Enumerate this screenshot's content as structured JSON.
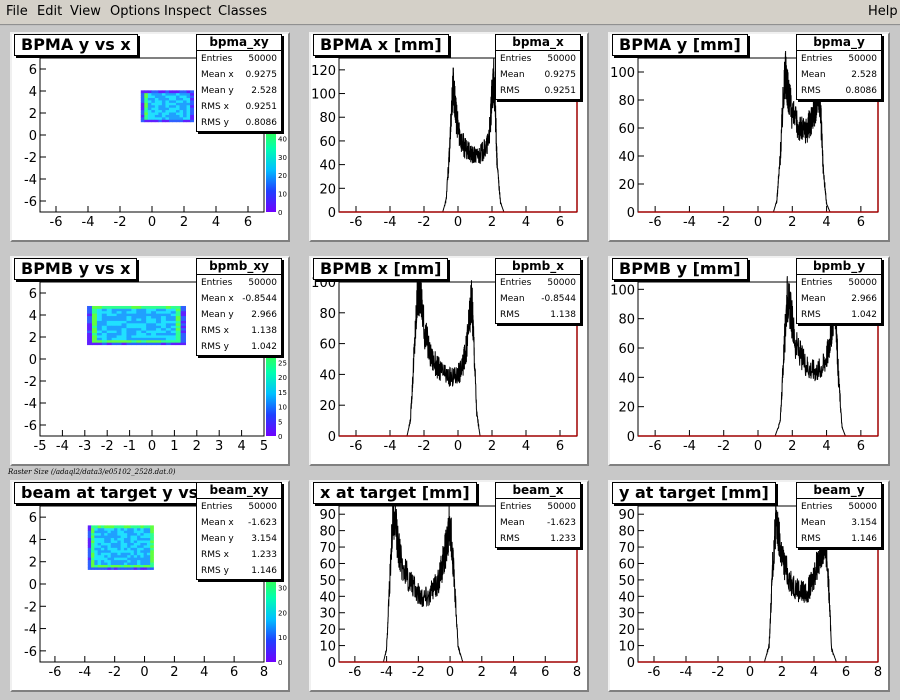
{
  "menubar": {
    "items": [
      {
        "label": "File"
      },
      {
        "label": "Edit"
      },
      {
        "label": "View"
      },
      {
        "label": "Options"
      },
      {
        "label": "Inspect"
      },
      {
        "label": "Classes"
      }
    ],
    "help": "Help"
  },
  "footer_label": "Raster Size (/adaql2/data3/e05102_2528.dat.0)",
  "pads": [
    {
      "id": "bpma_xy",
      "title": "BPMA y vs x",
      "stats_name": "bpma_xy",
      "stats": [
        {
          "label": "Entries",
          "value": "50000"
        },
        {
          "label": "Mean x",
          "value": "0.9275"
        },
        {
          "label": "Mean y",
          "value": "2.528"
        },
        {
          "label": "RMS x",
          "value": "0.9251"
        },
        {
          "label": "RMS y",
          "value": "0.8086"
        }
      ]
    },
    {
      "id": "bpma_x",
      "title": "BPMA x [mm]",
      "stats_name": "bpma_x",
      "stats": [
        {
          "label": "Entries",
          "value": "50000"
        },
        {
          "label": "Mean",
          "value": "0.9275"
        },
        {
          "label": "RMS",
          "value": "0.9251"
        }
      ]
    },
    {
      "id": "bpma_y",
      "title": "BPMA y [mm]",
      "stats_name": "bpma_y",
      "stats": [
        {
          "label": "Entries",
          "value": "50000"
        },
        {
          "label": "Mean",
          "value": "2.528"
        },
        {
          "label": "RMS",
          "value": "0.8086"
        }
      ]
    },
    {
      "id": "bpmb_xy",
      "title": "BPMB y vs x",
      "stats_name": "bpmb_xy",
      "stats": [
        {
          "label": "Entries",
          "value": "50000"
        },
        {
          "label": "Mean x",
          "value": "-0.8544"
        },
        {
          "label": "Mean y",
          "value": "2.966"
        },
        {
          "label": "RMS x",
          "value": "1.138"
        },
        {
          "label": "RMS y",
          "value": "1.042"
        }
      ]
    },
    {
      "id": "bpmb_x",
      "title": "BPMB x [mm]",
      "stats_name": "bpmb_x",
      "stats": [
        {
          "label": "Entries",
          "value": "50000"
        },
        {
          "label": "Mean",
          "value": "-0.8544"
        },
        {
          "label": "RMS",
          "value": "1.138"
        }
      ]
    },
    {
      "id": "bpmb_y",
      "title": "BPMB y [mm]",
      "stats_name": "bpmb_y",
      "stats": [
        {
          "label": "Entries",
          "value": "50000"
        },
        {
          "label": "Mean",
          "value": "2.966"
        },
        {
          "label": "RMS",
          "value": "1.042"
        }
      ]
    },
    {
      "id": "beam_xy",
      "title": "beam at target y vs x",
      "stats_name": "beam_xy",
      "stats": [
        {
          "label": "Entries",
          "value": "50000"
        },
        {
          "label": "Mean x",
          "value": "-1.623"
        },
        {
          "label": "Mean y",
          "value": "3.154"
        },
        {
          "label": "RMS x",
          "value": "1.233"
        },
        {
          "label": "RMS y",
          "value": "1.146"
        }
      ]
    },
    {
      "id": "beam_x",
      "title": "x at target [mm]",
      "stats_name": "beam_x",
      "stats": [
        {
          "label": "Entries",
          "value": "50000"
        },
        {
          "label": "Mean",
          "value": "-1.623"
        },
        {
          "label": "RMS",
          "value": "1.233"
        }
      ]
    },
    {
      "id": "beam_y",
      "title": "y at target [mm]",
      "stats_name": "beam_y",
      "stats": [
        {
          "label": "Entries",
          "value": "50000"
        },
        {
          "label": "Mean",
          "value": "3.154"
        },
        {
          "label": "RMS",
          "value": "1.146"
        }
      ]
    }
  ],
  "chart_data": [
    {
      "id": "bpma_xy",
      "type": "heatmap",
      "title": "BPMA y vs x",
      "x_ticks": [
        -6,
        -4,
        -2,
        0,
        2,
        4,
        6
      ],
      "y_ticks": [
        -6,
        -4,
        -2,
        0,
        2,
        4,
        6
      ],
      "xlim": [
        -7,
        7
      ],
      "ylim": [
        -7,
        7
      ],
      "region_x": [
        -0.7,
        2.4
      ],
      "region_y": [
        1.2,
        3.9
      ],
      "colorbar_ticks": [
        0,
        10,
        20,
        30,
        40
      ]
    },
    {
      "id": "bpma_x",
      "type": "line",
      "title": "BPMA x [mm]",
      "x_ticks": [
        -6,
        -4,
        -2,
        0,
        2,
        4,
        6
      ],
      "y_ticks": [
        0,
        20,
        40,
        60,
        80,
        100,
        120
      ],
      "xlim": [
        -7,
        7
      ],
      "ylim": [
        0,
        130
      ],
      "x": [
        -0.9,
        -0.7,
        -0.5,
        -0.3,
        -0.2,
        -0.1,
        0.0,
        0.2,
        0.5,
        0.8,
        1.1,
        1.4,
        1.7,
        1.9,
        2.0,
        2.1,
        2.2,
        2.3,
        2.5,
        2.7
      ],
      "values": [
        0,
        10,
        50,
        110,
        95,
        80,
        72,
        60,
        52,
        48,
        47,
        50,
        55,
        72,
        100,
        112,
        85,
        40,
        8,
        0
      ]
    },
    {
      "id": "bpma_y",
      "type": "line",
      "title": "BPMA y [mm]",
      "x_ticks": [
        -6,
        -4,
        -2,
        0,
        2,
        4,
        6
      ],
      "y_ticks": [
        0,
        20,
        40,
        60,
        80,
        100
      ],
      "xlim": [
        -7,
        7
      ],
      "ylim": [
        0,
        110
      ],
      "x": [
        0.9,
        1.1,
        1.3,
        1.5,
        1.6,
        1.7,
        1.8,
        2.0,
        2.3,
        2.6,
        2.9,
        3.1,
        3.3,
        3.4,
        3.5,
        3.6,
        3.7,
        3.8,
        4.0,
        4.2
      ],
      "values": [
        0,
        8,
        40,
        88,
        100,
        92,
        82,
        70,
        62,
        58,
        60,
        66,
        72,
        80,
        90,
        82,
        60,
        30,
        6,
        0
      ]
    },
    {
      "id": "bpmb_xy",
      "type": "heatmap",
      "title": "BPMB y vs x",
      "x_ticks": [
        -5,
        -4,
        -3,
        -2,
        -1,
        0,
        1,
        2,
        3,
        4,
        5
      ],
      "y_ticks": [
        -6,
        -4,
        -2,
        0,
        2,
        4,
        6
      ],
      "xlim": [
        -5,
        5
      ],
      "ylim": [
        -7,
        7
      ],
      "region_x": [
        -2.9,
        1.3
      ],
      "region_y": [
        1.3,
        4.8
      ],
      "colorbar_ticks": [
        0,
        5,
        10,
        15,
        20,
        25
      ]
    },
    {
      "id": "bpmb_x",
      "type": "line",
      "title": "BPMB x [mm]",
      "x_ticks": [
        -6,
        -4,
        -2,
        0,
        2,
        4,
        6
      ],
      "y_ticks": [
        0,
        20,
        40,
        60,
        80,
        100
      ],
      "xlim": [
        -7,
        7
      ],
      "ylim": [
        0,
        100
      ],
      "x": [
        -3.0,
        -2.8,
        -2.6,
        -2.4,
        -2.2,
        -2.0,
        -1.6,
        -1.2,
        -0.8,
        -0.4,
        0.0,
        0.3,
        0.5,
        0.7,
        0.8,
        0.9,
        1.1,
        1.3
      ],
      "values": [
        0,
        10,
        50,
        90,
        95,
        70,
        52,
        45,
        40,
        38,
        40,
        46,
        58,
        80,
        90,
        70,
        15,
        0
      ]
    },
    {
      "id": "bpmb_y",
      "type": "line",
      "title": "BPMB y [mm]",
      "x_ticks": [
        -6,
        -4,
        -2,
        0,
        2,
        4,
        6
      ],
      "y_ticks": [
        0,
        20,
        40,
        60,
        80,
        100
      ],
      "xlim": [
        -7,
        7
      ],
      "ylim": [
        0,
        105
      ],
      "x": [
        1.0,
        1.3,
        1.5,
        1.7,
        1.9,
        2.2,
        2.6,
        3.0,
        3.4,
        3.8,
        4.1,
        4.3,
        4.5,
        4.7,
        4.9,
        5.1
      ],
      "values": [
        0,
        10,
        55,
        95,
        85,
        62,
        52,
        46,
        44,
        48,
        58,
        75,
        88,
        40,
        6,
        0
      ]
    },
    {
      "id": "beam_xy",
      "type": "heatmap",
      "title": "beam at target y vs x",
      "x_ticks": [
        -6,
        -4,
        -2,
        0,
        2,
        4,
        6,
        8
      ],
      "y_ticks": [
        -6,
        -4,
        -2,
        0,
        2,
        4,
        6
      ],
      "xlim": [
        -7,
        8
      ],
      "ylim": [
        -7,
        7
      ],
      "region_x": [
        -3.8,
        0.6
      ],
      "region_y": [
        1.3,
        5.2
      ],
      "colorbar_ticks": [
        0,
        10,
        20,
        30
      ]
    },
    {
      "id": "beam_x",
      "type": "line",
      "title": "x at target [mm]",
      "x_ticks": [
        -6,
        -4,
        -2,
        0,
        2,
        4,
        6,
        8
      ],
      "y_ticks": [
        0,
        10,
        20,
        30,
        40,
        50,
        60,
        70,
        80,
        90
      ],
      "xlim": [
        -7,
        8
      ],
      "ylim": [
        0,
        95
      ],
      "x": [
        -4.2,
        -4.0,
        -3.8,
        -3.6,
        -3.4,
        -3.1,
        -2.7,
        -2.2,
        -1.7,
        -1.2,
        -0.8,
        -0.5,
        -0.2,
        0.0,
        0.2,
        0.5,
        0.8
      ],
      "values": [
        0,
        8,
        50,
        88,
        80,
        62,
        52,
        44,
        40,
        42,
        48,
        58,
        72,
        85,
        60,
        10,
        0
      ]
    },
    {
      "id": "beam_y",
      "type": "line",
      "title": "y at target [mm]",
      "x_ticks": [
        -6,
        -4,
        -2,
        0,
        2,
        4,
        6,
        8
      ],
      "y_ticks": [
        0,
        10,
        20,
        30,
        40,
        50,
        60,
        70,
        80,
        90
      ],
      "xlim": [
        -7,
        8
      ],
      "ylim": [
        0,
        95
      ],
      "x": [
        0.9,
        1.2,
        1.4,
        1.6,
        1.8,
        2.1,
        2.5,
        3.0,
        3.4,
        3.8,
        4.1,
        4.4,
        4.7,
        4.9,
        5.1,
        5.4
      ],
      "values": [
        0,
        10,
        55,
        85,
        75,
        60,
        50,
        44,
        42,
        46,
        56,
        68,
        75,
        50,
        8,
        0
      ]
    }
  ]
}
